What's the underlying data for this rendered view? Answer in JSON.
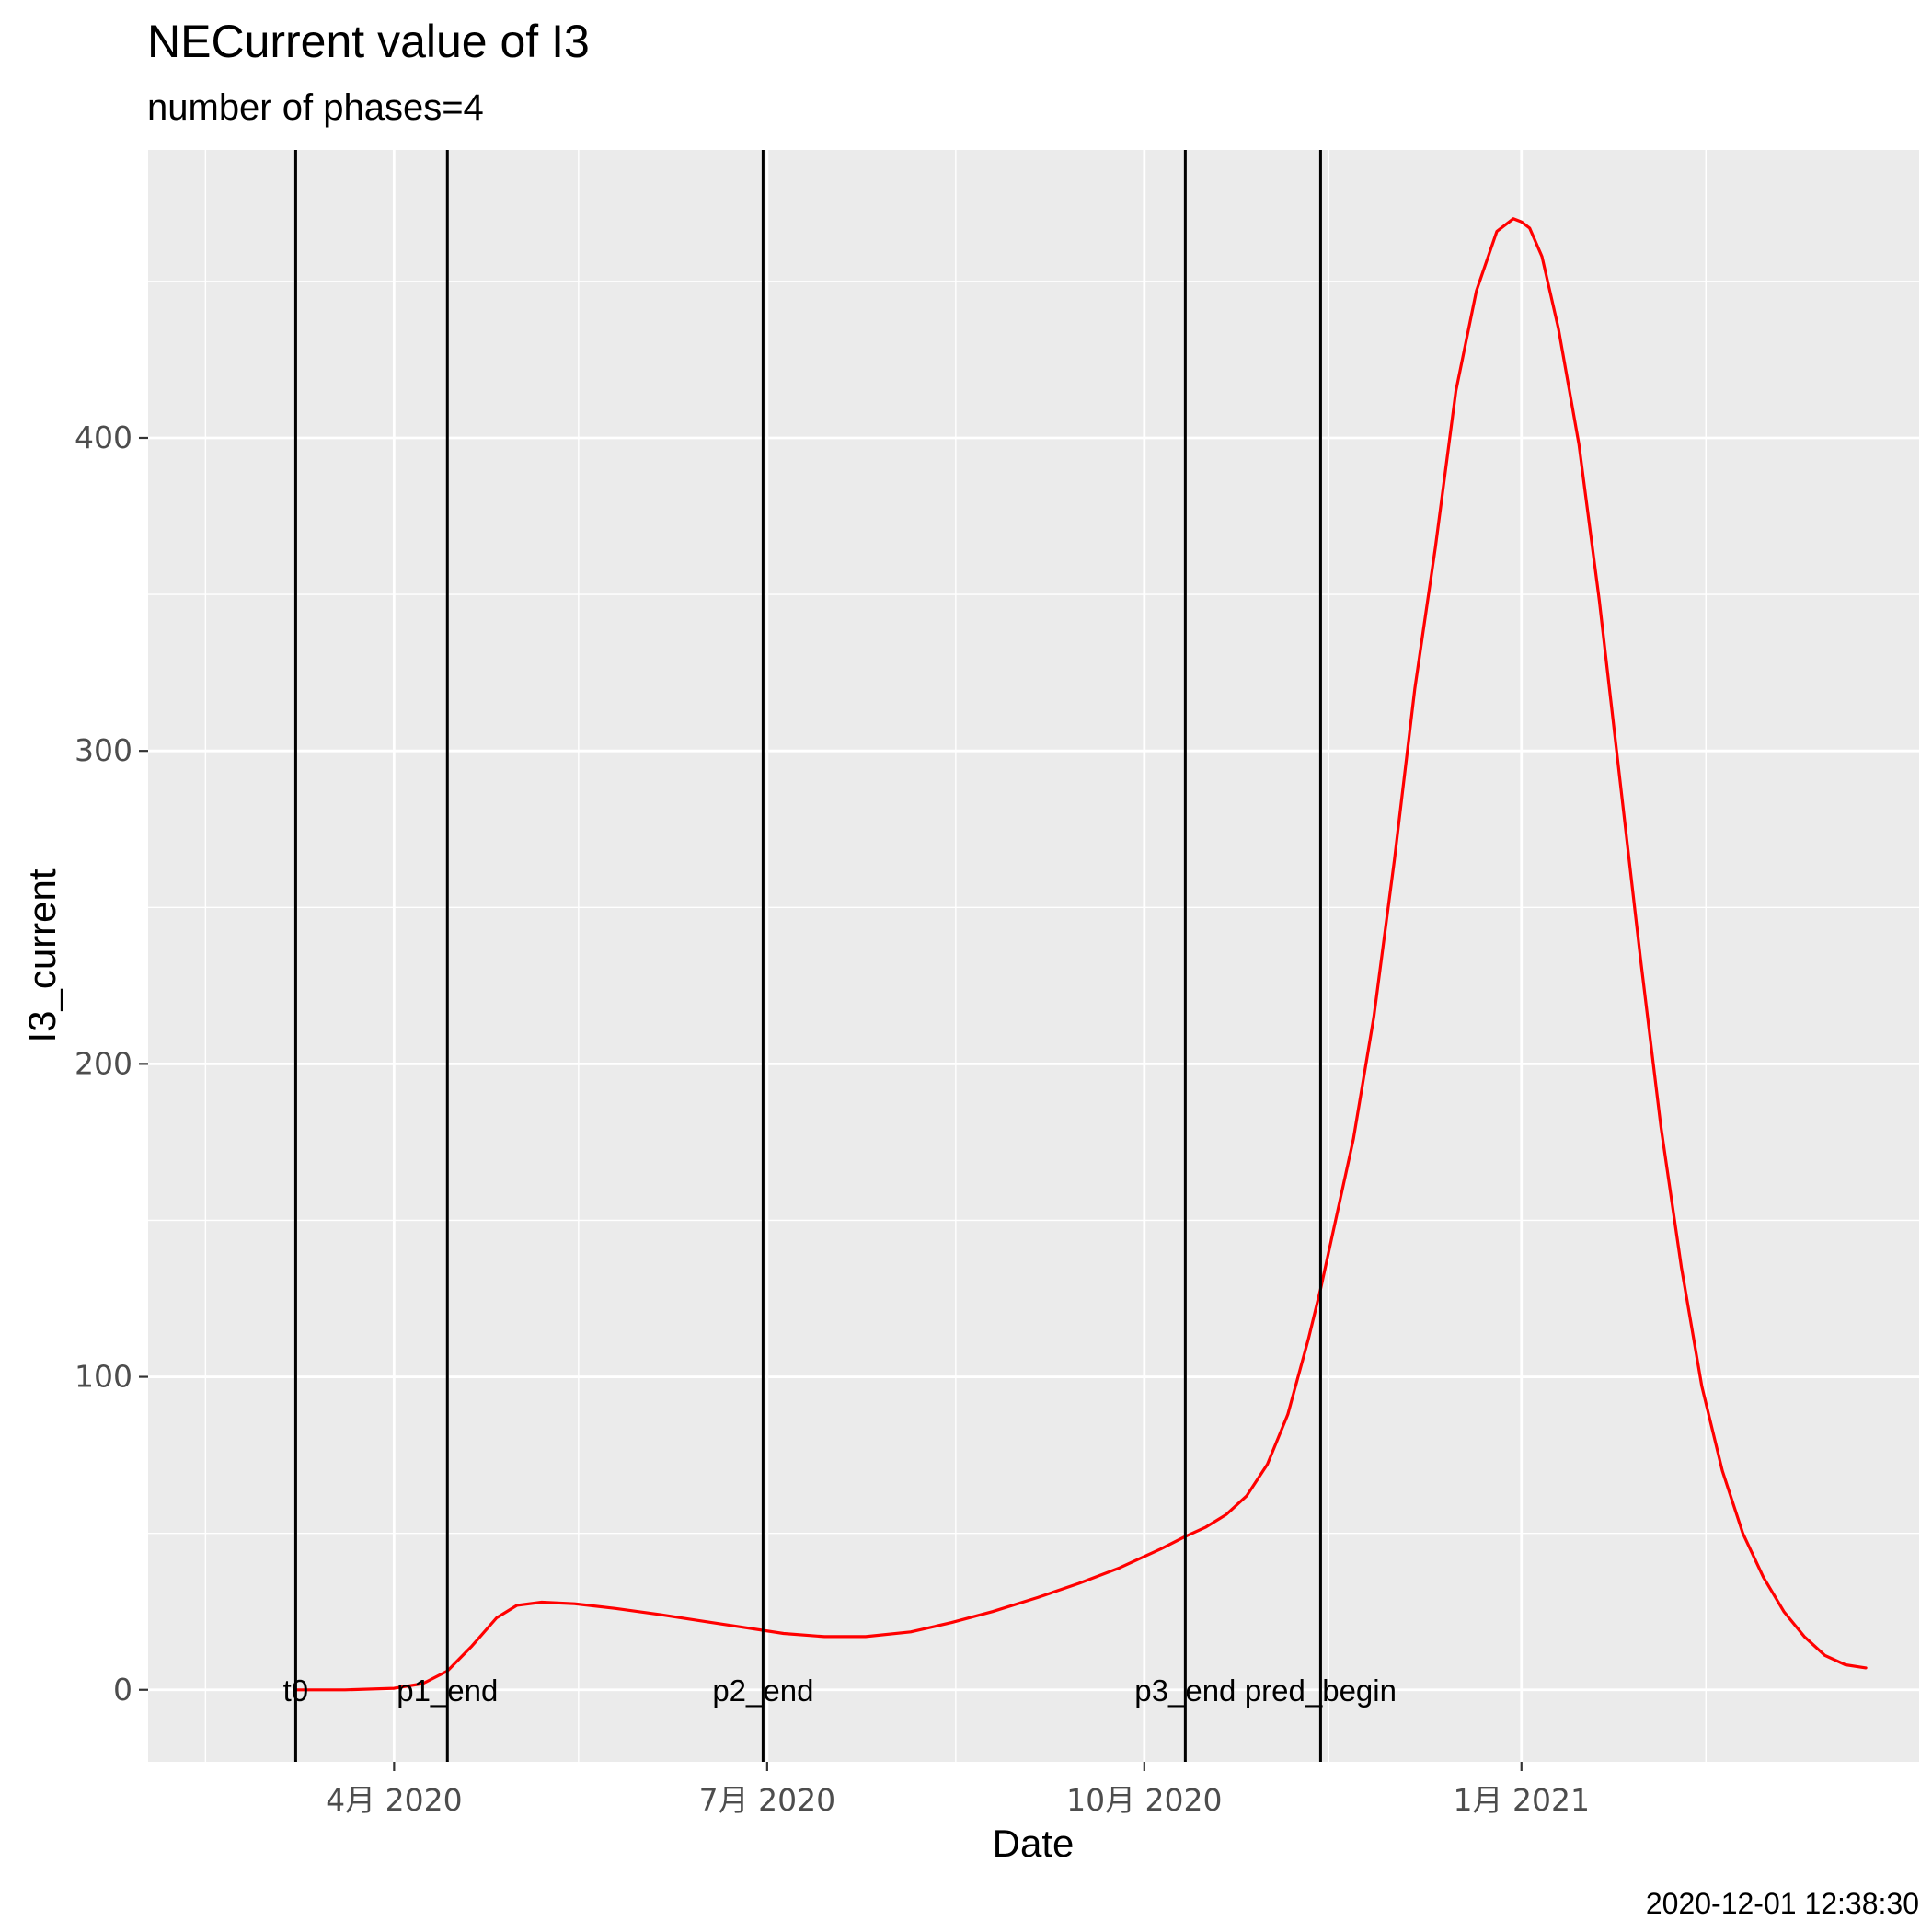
{
  "chart_data": {
    "type": "line",
    "title": "NECurrent value of I3",
    "subtitle": "number of phases=4",
    "xlabel": "Date",
    "ylabel": "I3_current",
    "caption": "2020-12-01 12:38:30",
    "xlim": [
      "2020-02-01",
      "2021-04-08"
    ],
    "ylim": [
      -23,
      492
    ],
    "x_ticks": [
      {
        "date": "2020-04-01",
        "label": "4月 2020"
      },
      {
        "date": "2020-07-01",
        "label": "7月 2020"
      },
      {
        "date": "2020-10-01",
        "label": "10月 2020"
      },
      {
        "date": "2021-01-01",
        "label": "1月 2021"
      }
    ],
    "x_minor_ticks": [
      "2020-02-15",
      "2020-05-16",
      "2020-08-16",
      "2020-11-15",
      "2021-02-15"
    ],
    "y_ticks": [
      0,
      100,
      200,
      300,
      400
    ],
    "y_minor_ticks": [
      50,
      150,
      250,
      350,
      450
    ],
    "grid": true,
    "vlines": [
      {
        "date": "2020-03-08",
        "label": "t0"
      },
      {
        "date": "2020-04-14",
        "label": "p1_end"
      },
      {
        "date": "2020-06-30",
        "label": "p2_end"
      },
      {
        "date": "2020-10-11",
        "label": "p3_end"
      },
      {
        "date": "2020-11-13",
        "label": "pred_begin"
      }
    ],
    "series": [
      {
        "color": "#ff0000",
        "x": [
          "2020-03-08",
          "2020-03-20",
          "2020-04-01",
          "2020-04-08",
          "2020-04-14",
          "2020-04-20",
          "2020-04-26",
          "2020-05-01",
          "2020-05-07",
          "2020-05-15",
          "2020-05-25",
          "2020-06-05",
          "2020-06-15",
          "2020-06-25",
          "2020-07-05",
          "2020-07-15",
          "2020-07-25",
          "2020-08-05",
          "2020-08-15",
          "2020-08-25",
          "2020-09-05",
          "2020-09-15",
          "2020-09-25",
          "2020-10-05",
          "2020-10-11",
          "2020-10-16",
          "2020-10-21",
          "2020-10-26",
          "2020-10-31",
          "2020-11-05",
          "2020-11-10",
          "2020-11-13",
          "2020-11-17",
          "2020-11-21",
          "2020-11-26",
          "2020-12-01",
          "2020-12-06",
          "2020-12-11",
          "2020-12-16",
          "2020-12-21",
          "2020-12-26",
          "2020-12-30",
          "2021-01-01",
          "2021-01-03",
          "2021-01-06",
          "2021-01-10",
          "2021-01-15",
          "2021-01-20",
          "2021-01-25",
          "2021-01-30",
          "2021-02-04",
          "2021-02-09",
          "2021-02-14",
          "2021-02-19",
          "2021-02-24",
          "2021-03-01",
          "2021-03-06",
          "2021-03-11",
          "2021-03-16",
          "2021-03-21",
          "2021-03-26"
        ],
        "y": [
          0,
          0,
          0.5,
          2,
          6,
          14,
          23,
          27,
          28,
          27.5,
          26,
          24,
          22,
          20,
          18,
          17,
          17,
          18.5,
          21.5,
          25,
          29.5,
          34,
          39,
          45,
          49,
          52,
          56,
          62,
          72,
          88,
          112,
          128,
          152,
          176,
          215,
          265,
          320,
          365,
          415,
          447,
          466,
          470,
          469,
          467,
          458,
          435,
          398,
          348,
          291,
          234,
          180,
          135,
          97,
          70,
          50,
          36,
          25,
          17,
          11,
          8,
          7
        ]
      }
    ]
  }
}
